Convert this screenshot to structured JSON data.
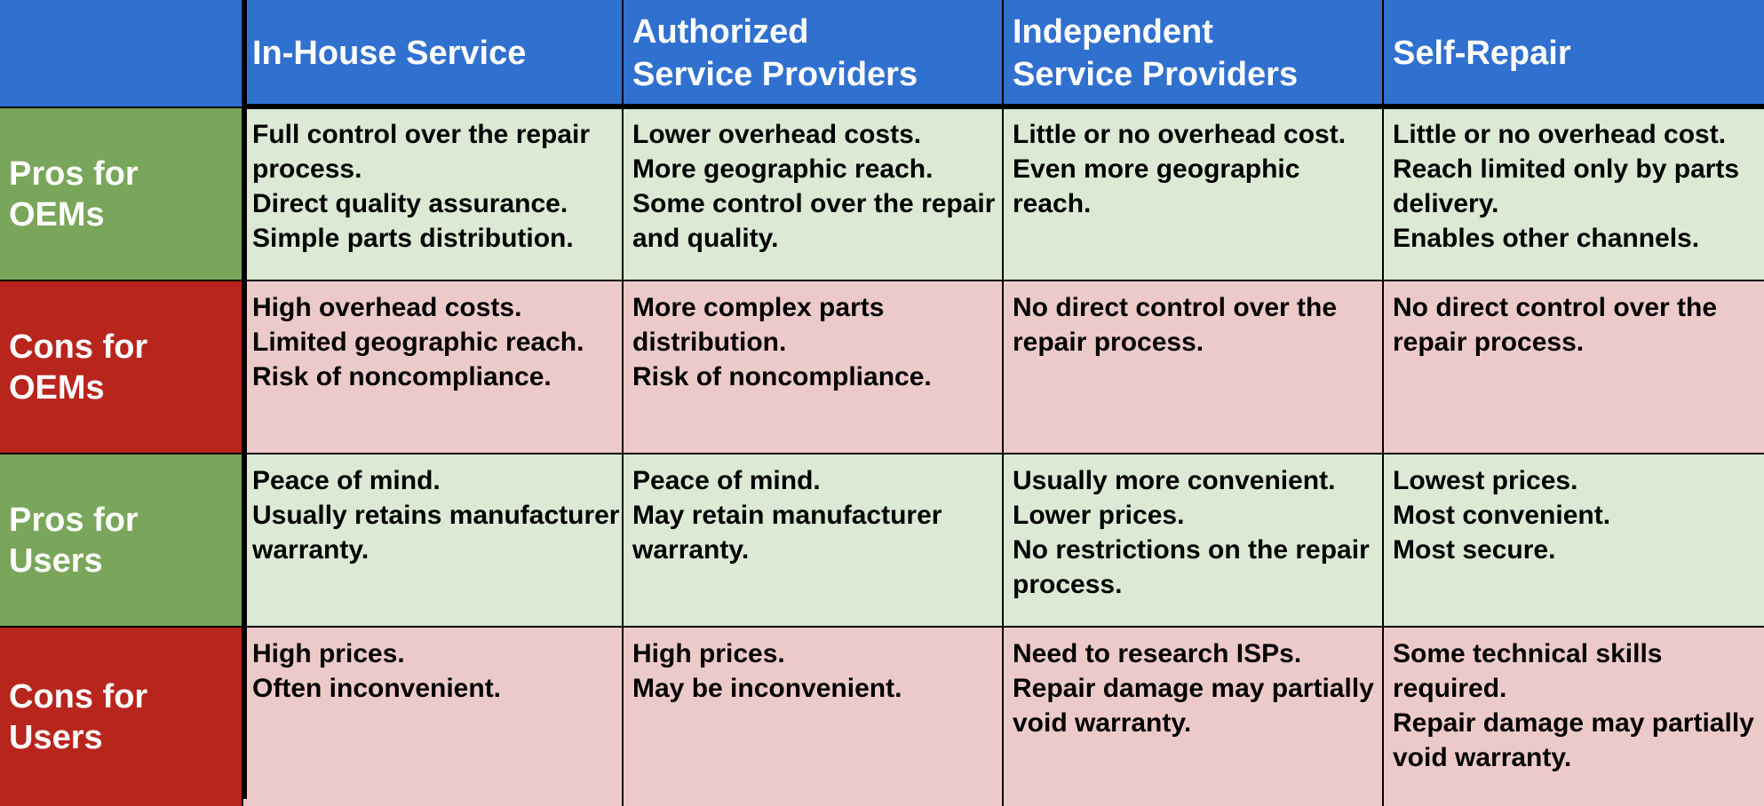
{
  "table": {
    "corner": "",
    "columns": [
      "In-House Service",
      "Authorized\nService Providers",
      "Independent\nService Providers",
      "Self-Repair"
    ],
    "rows": [
      {
        "label": "Pros for\nOEMs",
        "kind": "pro",
        "cells": [
          [
            "Full control over the repair process.",
            "Direct quality assurance.",
            "Simple parts distribution."
          ],
          [
            "Lower overhead costs.",
            "More geographic reach.",
            "Some control over the repair and quality."
          ],
          [
            "Little or no overhead cost.",
            "Even more geographic reach."
          ],
          [
            "Little or no overhead cost.",
            "Reach limited only by parts delivery.",
            "Enables other channels."
          ]
        ]
      },
      {
        "label": "Cons for\nOEMs",
        "kind": "con",
        "cells": [
          [
            "High overhead costs.",
            "Limited geographic reach.",
            "Risk of noncompliance."
          ],
          [
            "More complex parts distribution.",
            "Risk of noncompliance."
          ],
          [
            "No direct control over the repair process."
          ],
          [
            "No direct control over the repair process."
          ]
        ]
      },
      {
        "label": "Pros for\nUsers",
        "kind": "pro",
        "cells": [
          [
            "Peace of mind.",
            "Usually retains manufacturer warranty."
          ],
          [
            "Peace of mind.",
            "May retain manufacturer warranty."
          ],
          [
            "Usually more convenient.",
            "Lower prices.",
            "No restrictions on the repair process."
          ],
          [
            "Lowest prices.",
            "Most convenient.",
            "Most secure."
          ]
        ]
      },
      {
        "label": "Cons for\nUsers",
        "kind": "con",
        "cells": [
          [
            "High prices.",
            "Often inconvenient."
          ],
          [
            "High prices.",
            "May be inconvenient."
          ],
          [
            "Need to research ISPs.",
            "Repair damage may partially void warranty."
          ],
          [
            "Some technical skills required.",
            "Repair damage may partially void warranty."
          ]
        ]
      }
    ]
  },
  "colors": {
    "header_blue": "#3070cf",
    "pro_label_green": "#79a65a",
    "con_label_red": "#b8251d",
    "pro_cell_green": "#dce9d4",
    "con_cell_pink": "#edcaca"
  }
}
